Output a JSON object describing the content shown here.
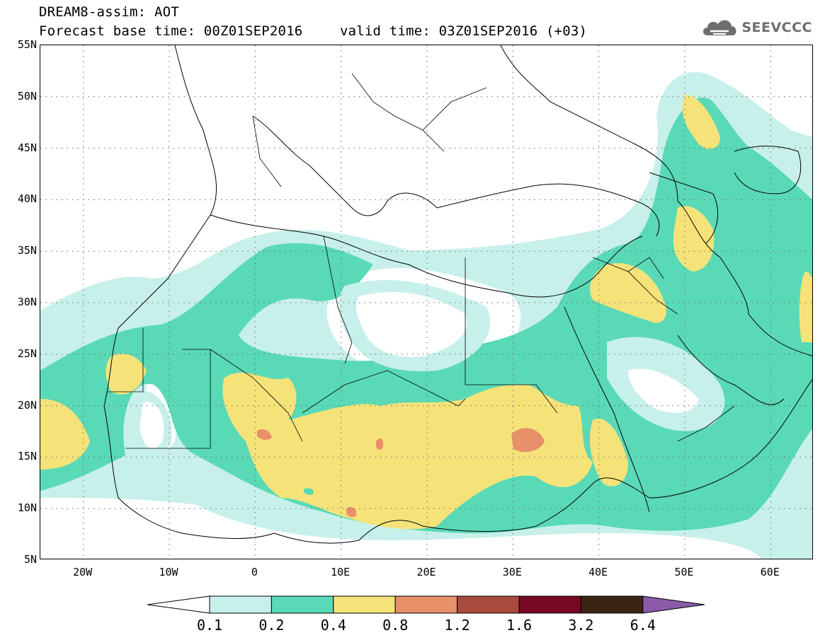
{
  "header": {
    "line1": "DREAM8-assim: AOT",
    "line2": "Forecast base time: 00Z01SEP2016",
    "line3": "valid time: 03Z01SEP2016 (+03)"
  },
  "logo": {
    "text": "SEEVCCC",
    "icon": "cloud-icon"
  },
  "map": {
    "lon_range": [
      -25,
      65
    ],
    "lat_range": [
      5,
      55
    ],
    "lat_labels": [
      "55N",
      "50N",
      "45N",
      "40N",
      "35N",
      "30N",
      "25N",
      "20N",
      "15N",
      "10N",
      "5N"
    ],
    "lon_labels": [
      "20W",
      "10W",
      "0",
      "10E",
      "20E",
      "30E",
      "40E",
      "50E",
      "60E"
    ],
    "gridlines": "dotted"
  },
  "legend": {
    "thresholds": [
      "0.1",
      "0.2",
      "0.4",
      "0.8",
      "1.2",
      "1.6",
      "3.2",
      "6.4"
    ],
    "colors": [
      "#ffffff",
      "#c8f0ea",
      "#5ad9b6",
      "#f5e37a",
      "#e8906a",
      "#a84a3c",
      "#760826",
      "#3c2414",
      "#8a5aa8"
    ]
  }
}
